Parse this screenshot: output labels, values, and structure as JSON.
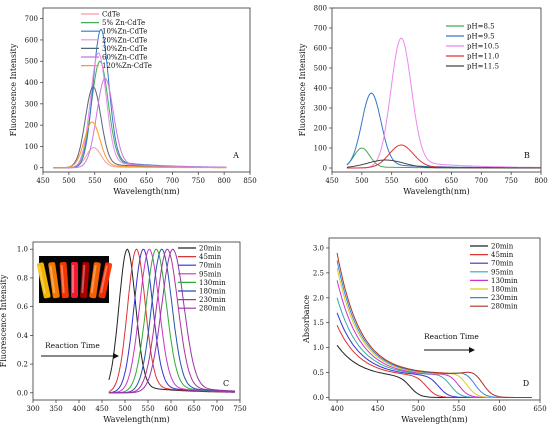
{
  "chart_data": [
    {
      "id": "A",
      "type": "line",
      "panel_label": "A",
      "xlabel": "Wavelength(nm)",
      "ylabel": "Fluorescence Intensity",
      "xlim": [
        450,
        850
      ],
      "ylim": [
        -20,
        750
      ],
      "xticks": [
        450,
        500,
        550,
        600,
        650,
        700,
        750,
        800,
        850
      ],
      "yticks": [
        0,
        100,
        200,
        300,
        400,
        500,
        600,
        700
      ],
      "x_range": [
        470,
        805
      ],
      "legend_position": "top-left",
      "series": [
        {
          "name": "CdTe",
          "color": "#ff9999",
          "peak_x": 548,
          "peak_y": 95,
          "sigma": 14
        },
        {
          "name": "5% Zn-CdTe",
          "color": "#44aa55",
          "peak_x": 560,
          "peak_y": 500,
          "sigma": 16
        },
        {
          "name": "10%Zn-CdTe",
          "color": "#3377cc",
          "peak_x": 562,
          "peak_y": 650,
          "sigma": 15
        },
        {
          "name": "20%Zn-CdTe",
          "color": "#ee88ee",
          "peak_x": 557,
          "peak_y": 540,
          "sigma": 15
        },
        {
          "name": "30%Zn-CdTe",
          "color": "#556677",
          "peak_x": 547,
          "peak_y": 380,
          "sigma": 15
        },
        {
          "name": "60%Zn-CdTe",
          "color": "#cc77dd",
          "peak_x": 570,
          "peak_y": 420,
          "sigma": 16
        },
        {
          "name": "120%Zn-CdTe",
          "color": "#ff9922",
          "peak_x": 545,
          "peak_y": 215,
          "sigma": 15
        }
      ]
    },
    {
      "id": "B",
      "type": "line",
      "panel_label": "B",
      "xlabel": "Wavelength(nm)",
      "ylabel": "Fluorescence Intensity",
      "xlim": [
        450,
        800
      ],
      "ylim": [
        -20,
        800
      ],
      "xticks": [
        450,
        500,
        550,
        600,
        650,
        700,
        750,
        800
      ],
      "yticks": [
        0,
        100,
        200,
        300,
        400,
        500,
        600,
        700,
        800
      ],
      "x_range": [
        475,
        800
      ],
      "legend_position": "top-right",
      "series": [
        {
          "name": "pH=8.5",
          "color": "#44aa55",
          "peak_x": 500,
          "peak_y": 100,
          "sigma": 13
        },
        {
          "name": "pH=9.5",
          "color": "#3377cc",
          "peak_x": 516,
          "peak_y": 375,
          "sigma": 16
        },
        {
          "name": "pH=10.5",
          "color": "#ee88ee",
          "peak_x": 566,
          "peak_y": 650,
          "sigma": 17
        },
        {
          "name": "pH=11.0",
          "color": "#dd3333",
          "peak_x": 566,
          "peak_y": 115,
          "sigma": 20
        },
        {
          "name": "pH=11.5",
          "color": "#444444",
          "peak_x": 540,
          "peak_y": 40,
          "sigma": 30
        }
      ]
    },
    {
      "id": "C",
      "type": "line",
      "panel_label": "C",
      "xlabel": "Wavelength(nm)",
      "ylabel": "Fluorescence Intensity",
      "annotation": "Reaction Time",
      "xlim": [
        300,
        750
      ],
      "ylim": [
        -0.05,
        1.05
      ],
      "xticks": [
        300,
        350,
        400,
        450,
        500,
        550,
        600,
        650,
        700,
        750
      ],
      "yticks": [
        0.0,
        0.2,
        0.4,
        0.6,
        0.8,
        1.0
      ],
      "x_range": [
        465,
        740
      ],
      "legend_position": "top-right",
      "series": [
        {
          "name": "20min",
          "color": "#222222",
          "peak_x": 505,
          "peak_y": 1.0,
          "sigma": 18
        },
        {
          "name": "45min",
          "color": "#dd3333",
          "peak_x": 525,
          "peak_y": 1.0,
          "sigma": 19
        },
        {
          "name": "70min",
          "color": "#3333cc",
          "peak_x": 540,
          "peak_y": 1.0,
          "sigma": 20
        },
        {
          "name": "95min",
          "color": "#cc33cc",
          "peak_x": 553,
          "peak_y": 1.0,
          "sigma": 21
        },
        {
          "name": "130min",
          "color": "#33aa33",
          "peak_x": 568,
          "peak_y": 1.0,
          "sigma": 22
        },
        {
          "name": "180min",
          "color": "#2255aa",
          "peak_x": 580,
          "peak_y": 1.0,
          "sigma": 22
        },
        {
          "name": "230min",
          "color": "#aa3399",
          "peak_x": 592,
          "peak_y": 1.0,
          "sigma": 23
        },
        {
          "name": "280min",
          "color": "#9933aa",
          "peak_x": 604,
          "peak_y": 1.0,
          "sigma": 24
        }
      ]
    },
    {
      "id": "D",
      "type": "line",
      "panel_label": "D",
      "xlabel": "Wavelength(nm)",
      "ylabel": "Absorbance",
      "annotation": "Reaction Time",
      "xlim": [
        390,
        650
      ],
      "ylim": [
        -0.05,
        3.2
      ],
      "xticks": [
        400,
        450,
        500,
        550,
        600,
        650
      ],
      "yticks": [
        0.0,
        0.5,
        1.0,
        1.5,
        2.0,
        2.5,
        3.0
      ],
      "x_range": [
        400,
        640
      ],
      "legend_position": "top-right",
      "series": [
        {
          "name": "20min",
          "color": "#222222",
          "y400": 1.05,
          "plateau": 0.4,
          "edge": 490,
          "peak": 0.0
        },
        {
          "name": "45min",
          "color": "#dd3333",
          "y400": 1.45,
          "plateau": 0.42,
          "edge": 510,
          "peak": 0.0
        },
        {
          "name": "70min",
          "color": "#3333cc",
          "y400": 1.7,
          "plateau": 0.43,
          "edge": 525,
          "peak": 0.0
        },
        {
          "name": "95min",
          "color": "#33aaaa",
          "y400": 2.0,
          "plateau": 0.44,
          "edge": 540,
          "peak": 0.02
        },
        {
          "name": "130min",
          "color": "#cc33cc",
          "y400": 2.35,
          "plateau": 0.44,
          "edge": 550,
          "peak": 0.03
        },
        {
          "name": "180min",
          "color": "#ddcc22",
          "y400": 2.6,
          "plateau": 0.45,
          "edge": 560,
          "peak": 0.04
        },
        {
          "name": "230min",
          "color": "#3388dd",
          "y400": 2.75,
          "plateau": 0.46,
          "edge": 570,
          "peak": 0.05
        },
        {
          "name": "280min",
          "color": "#aa3322",
          "y400": 2.9,
          "plateau": 0.47,
          "edge": 580,
          "peak": 0.06
        }
      ]
    }
  ],
  "inset": {
    "description_colors": [
      "#ffbf00",
      "#ff7f00",
      "#ff3b00",
      "#ff1a33",
      "#b40000",
      "#ff6500",
      "#ff3000"
    ]
  }
}
